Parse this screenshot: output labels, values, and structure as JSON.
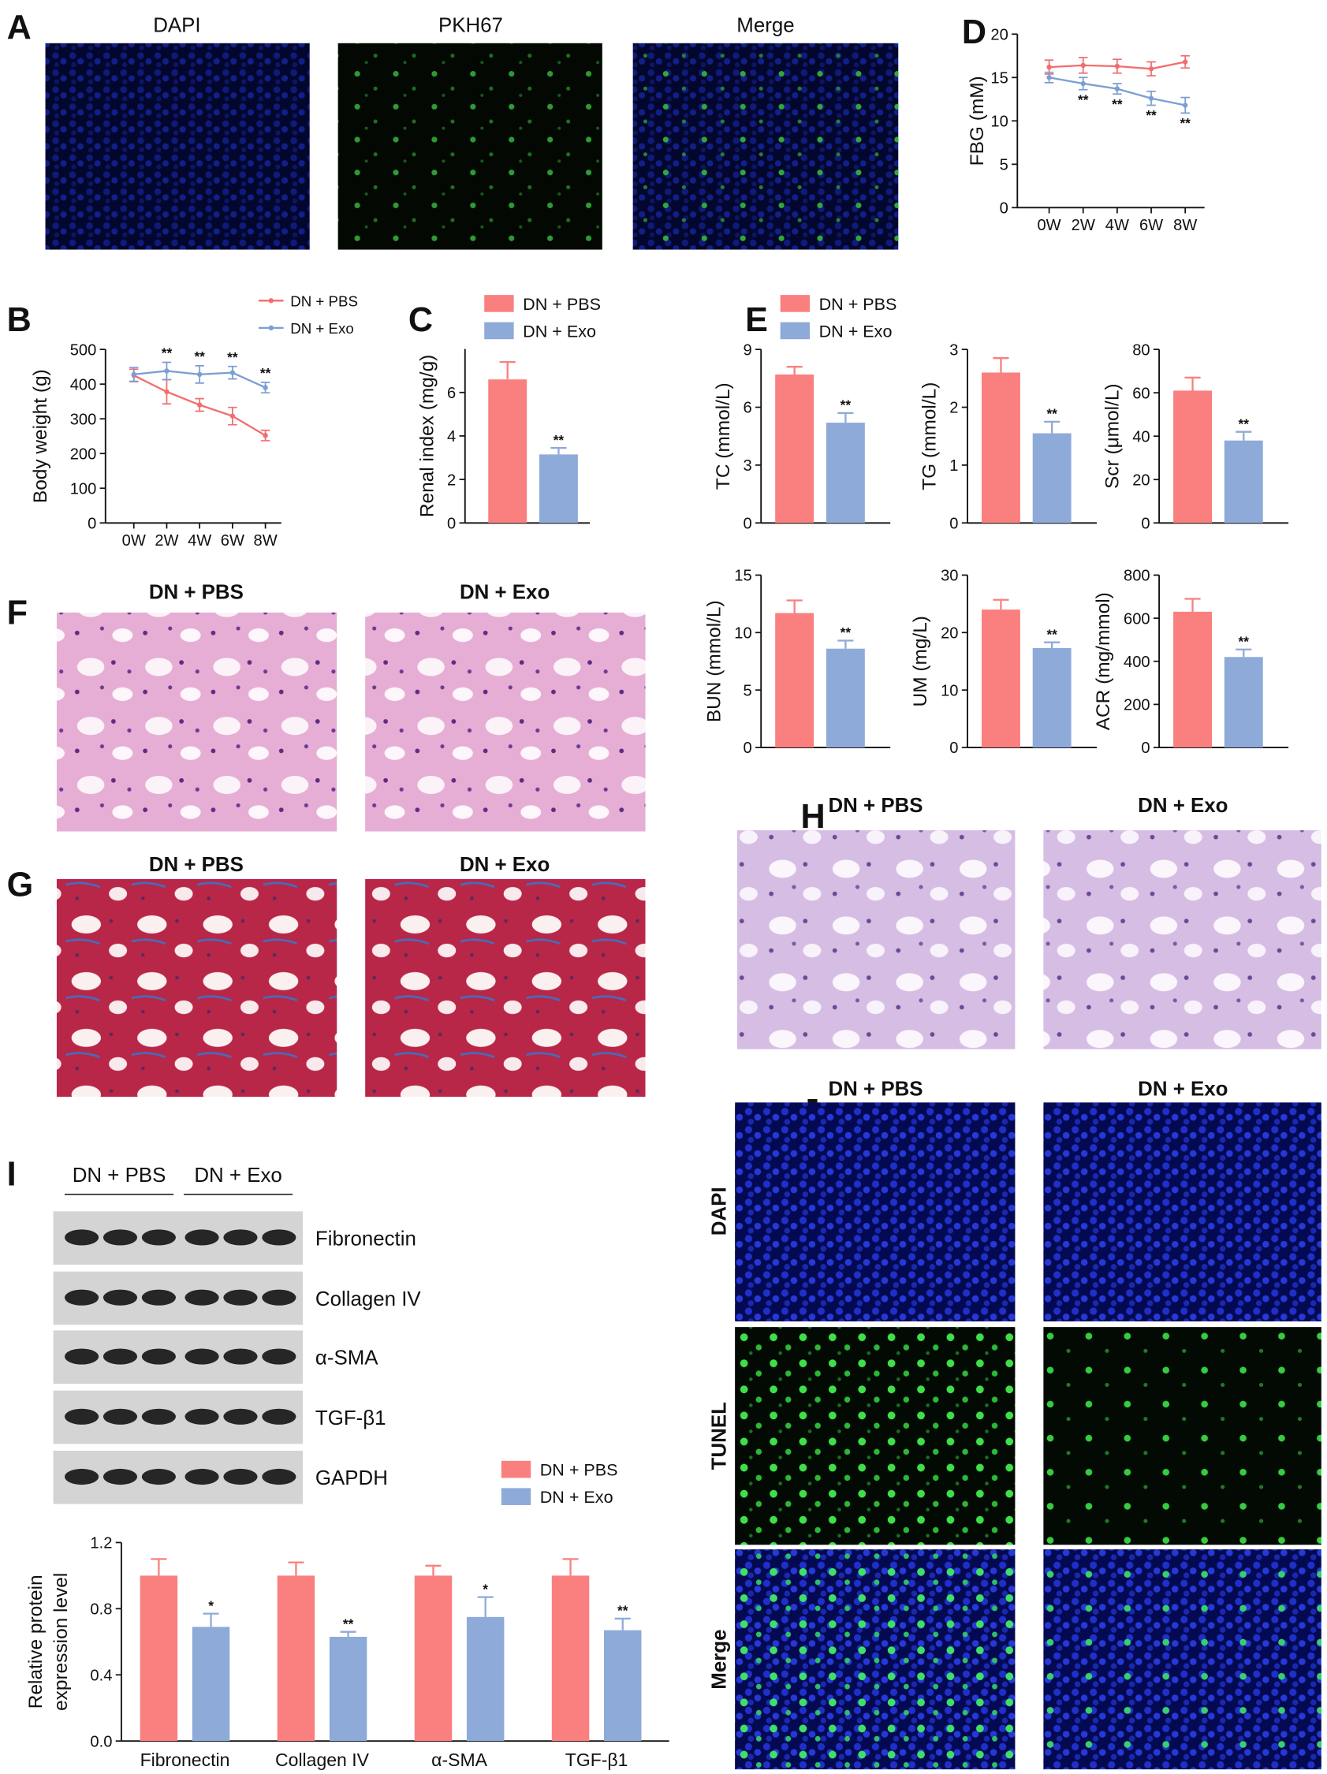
{
  "labels": {
    "letters": [
      "A",
      "B",
      "C",
      "D",
      "E",
      "F",
      "G",
      "H",
      "I",
      "J"
    ],
    "a_images": [
      "DAPI",
      "PKH67",
      "Merge"
    ],
    "f_groups": [
      "DN + PBS",
      "DN + Exo"
    ],
    "g_groups": [
      "DN + PBS",
      "DN + Exo"
    ],
    "h_groups": [
      "DN + PBS",
      "DN + Exo"
    ],
    "j_groups": [
      "DN + PBS",
      "DN + Exo"
    ],
    "j_rows": [
      "DAPI",
      "TUNEL",
      "Merge"
    ],
    "i_groups": [
      "DN + PBS",
      "DN + Exo"
    ],
    "i_blots": [
      "Fibronectin",
      "Collagen IV",
      "α-SMA",
      "TGF-β1",
      "GAPDH"
    ]
  },
  "chart_data": [
    {
      "type": "line",
      "ylabel": "FBG (mM)",
      "categories": [
        "0W",
        "2W",
        "4W",
        "6W",
        "8W"
      ],
      "ylim": [
        0,
        20
      ],
      "yticks": [
        0,
        5,
        10,
        15,
        20
      ],
      "series": [
        {
          "color": "#f26d6d",
          "values": [
            16.2,
            16.4,
            16.3,
            16.0,
            16.8
          ],
          "errors": [
            0.8,
            0.9,
            0.8,
            0.8,
            0.7
          ]
        },
        {
          "color": "#7b9ed3",
          "values": [
            15.0,
            14.3,
            13.7,
            12.6,
            11.8
          ],
          "errors": [
            0.6,
            0.7,
            0.6,
            0.8,
            0.9
          ],
          "annotations": [
            null,
            "**",
            "**",
            "**",
            "**"
          ]
        }
      ]
    },
    {
      "type": "line",
      "ylabel": "Body weight (g)",
      "categories": [
        "0W",
        "2W",
        "4W",
        "6W",
        "8W"
      ],
      "ylim": [
        0,
        500
      ],
      "yticks": [
        0,
        100,
        200,
        300,
        400,
        500
      ],
      "series": [
        {
          "name": "DN + PBS",
          "color": "#f26d6d",
          "values": [
            425,
            378,
            340,
            308,
            252
          ],
          "errors": [
            18,
            35,
            18,
            25,
            15
          ]
        },
        {
          "name": "DN + Exo",
          "color": "#7b9ed3",
          "values": [
            428,
            438,
            428,
            433,
            390
          ],
          "errors": [
            20,
            25,
            25,
            18,
            15
          ],
          "annotations": [
            null,
            "**",
            "**",
            "**",
            "**"
          ]
        }
      ]
    },
    {
      "type": "bar",
      "ylabel": "Renal index (mg/g)",
      "ylim": [
        0,
        8
      ],
      "yticks": [
        0,
        2,
        4,
        6
      ],
      "series": [
        {
          "name": "DN + PBS",
          "color": "#fa7f7f",
          "values": [
            6.6
          ],
          "errors": [
            0.8
          ]
        },
        {
          "name": "DN + Exo",
          "color": "#8eaad8",
          "values": [
            3.15
          ],
          "errors": [
            0.3
          ],
          "annotations": [
            "**"
          ]
        }
      ]
    },
    {
      "type": "bar",
      "ylabel": "TC (mmol/L)",
      "ylim": [
        0,
        9
      ],
      "yticks": [
        0,
        3,
        6,
        9
      ],
      "series": [
        {
          "name": "DN + PBS",
          "color": "#fa7f7f",
          "values": [
            7.7
          ],
          "errors": [
            0.4
          ]
        },
        {
          "name": "DN + Exo",
          "color": "#8eaad8",
          "values": [
            5.2
          ],
          "errors": [
            0.5
          ],
          "annotations": [
            "**"
          ]
        }
      ]
    },
    {
      "type": "bar",
      "ylabel": "TG (mmol/L)",
      "ylim": [
        0,
        3
      ],
      "yticks": [
        0,
        1,
        2,
        3
      ],
      "series": [
        {
          "color": "#fa7f7f",
          "values": [
            2.6
          ],
          "errors": [
            0.25
          ]
        },
        {
          "color": "#8eaad8",
          "values": [
            1.55
          ],
          "errors": [
            0.2
          ],
          "annotations": [
            "**"
          ]
        }
      ]
    },
    {
      "type": "bar",
      "ylabel": "Scr (μmol/L)",
      "ylim": [
        0,
        80
      ],
      "yticks": [
        0,
        20,
        40,
        60,
        80
      ],
      "series": [
        {
          "color": "#fa7f7f",
          "values": [
            61
          ],
          "errors": [
            6
          ]
        },
        {
          "color": "#8eaad8",
          "values": [
            38
          ],
          "errors": [
            4
          ],
          "annotations": [
            "**"
          ]
        }
      ]
    },
    {
      "type": "bar",
      "ylabel": "BUN (mmol/L)",
      "ylim": [
        0,
        15
      ],
      "yticks": [
        0,
        5,
        10,
        15
      ],
      "series": [
        {
          "color": "#fa7f7f",
          "values": [
            11.7
          ],
          "errors": [
            1.1
          ]
        },
        {
          "color": "#8eaad8",
          "values": [
            8.6
          ],
          "errors": [
            0.7
          ],
          "annotations": [
            "**"
          ]
        }
      ]
    },
    {
      "type": "bar",
      "ylabel": "UM (mg/L)",
      "ylim": [
        0,
        30
      ],
      "yticks": [
        0,
        10,
        20,
        30
      ],
      "series": [
        {
          "color": "#fa7f7f",
          "values": [
            24
          ],
          "errors": [
            1.7
          ]
        },
        {
          "color": "#8eaad8",
          "values": [
            17.3
          ],
          "errors": [
            1.0
          ],
          "annotations": [
            "**"
          ]
        }
      ]
    },
    {
      "type": "bar",
      "ylabel": "ACR (mg/mmol)",
      "ylim": [
        0,
        800
      ],
      "yticks": [
        0,
        200,
        400,
        600,
        800
      ],
      "series": [
        {
          "color": "#fa7f7f",
          "values": [
            630
          ],
          "errors": [
            60
          ]
        },
        {
          "color": "#8eaad8",
          "values": [
            420
          ],
          "errors": [
            35
          ],
          "annotations": [
            "**"
          ]
        }
      ]
    },
    {
      "type": "bar",
      "ylabel": [
        "Relative protein",
        "expression level"
      ],
      "categories": [
        "Fibronectin",
        "Collagen IV",
        "α-SMA",
        "TGF-β1"
      ],
      "ylim": [
        0,
        1.2
      ],
      "yticks": [
        {
          "value": 0,
          "label": "0.0"
        },
        0.4,
        0.8,
        1.2
      ],
      "series": [
        {
          "name": "DN + PBS",
          "color": "#fa7f7f",
          "values": [
            1.0,
            1.0,
            1.0,
            1.0
          ],
          "errors": [
            0.1,
            0.08,
            0.06,
            0.1
          ]
        },
        {
          "name": "DN + Exo",
          "color": "#8eaad8",
          "values": [
            0.69,
            0.63,
            0.75,
            0.67
          ],
          "errors": [
            0.08,
            0.03,
            0.12,
            0.07
          ],
          "annotations": [
            "*",
            "**",
            "*",
            "**"
          ]
        }
      ]
    }
  ]
}
